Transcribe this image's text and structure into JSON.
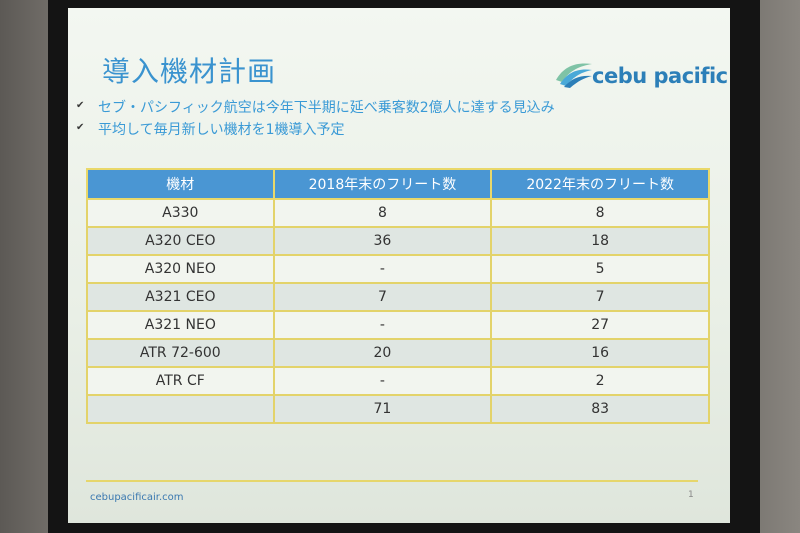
{
  "slide": {
    "title": "導入機材計画",
    "logo_text": "cebu pacific",
    "bullets": [
      "セブ・パシフィック航空は今年下半期に延べ乗客数2億人に達する見込み",
      "平均して毎月新しい機材を1機導入予定"
    ],
    "table": {
      "headers": [
        "機材",
        "2018年末のフリート数",
        "2022年末のフリート数"
      ],
      "rows": [
        [
          "A330",
          "8",
          "8"
        ],
        [
          "A320 CEO",
          "36",
          "18"
        ],
        [
          "A320 NEO",
          "-",
          "5"
        ],
        [
          "A321 CEO",
          "7",
          "7"
        ],
        [
          "A321 NEO",
          "-",
          "27"
        ],
        [
          "ATR 72-600",
          "20",
          "16"
        ],
        [
          "ATR CF",
          "-",
          "2"
        ],
        [
          "",
          "71",
          "83"
        ]
      ]
    },
    "footer_url": "cebupacificair.com",
    "page_number": "1",
    "colors": {
      "accent": "#3a93cf",
      "table_header": "#4a96d3",
      "table_border": "#e3d36a"
    }
  }
}
